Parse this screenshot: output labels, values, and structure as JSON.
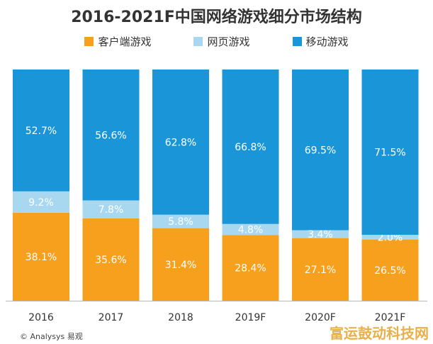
{
  "chart_data": {
    "type": "bar",
    "stacked": true,
    "normalized": true,
    "title": "2016-2021F中国网络游戏细分市场结构",
    "categories": [
      "2016",
      "2017",
      "2018",
      "2019F",
      "2020F",
      "2021F"
    ],
    "series": [
      {
        "name": "客户端游戏",
        "color": "#f7a01e",
        "values": [
          38.1,
          35.6,
          31.4,
          28.4,
          27.1,
          26.5
        ],
        "labels": [
          "38.1%",
          "35.6%",
          "31.4%",
          "28.4%",
          "27.1%",
          "26.5%"
        ]
      },
      {
        "name": "网页游戏",
        "color": "#a8d8f0",
        "values": [
          9.2,
          7.8,
          5.8,
          4.8,
          3.4,
          2.0
        ],
        "labels": [
          "9.2%",
          "7.8%",
          "5.8%",
          "4.8%",
          "3.4%",
          "2.0%"
        ]
      },
      {
        "name": "移动游戏",
        "color": "#1a96d8",
        "values": [
          52.7,
          56.6,
          62.8,
          66.8,
          69.5,
          71.5
        ],
        "labels": [
          "52.7%",
          "56.6%",
          "62.8%",
          "66.8%",
          "69.5%",
          "71.5%"
        ]
      }
    ],
    "ylim": [
      0,
      100
    ],
    "legend_position": "top",
    "xlabel": "",
    "ylabel": ""
  },
  "source": "© Analysys 易观",
  "watermark": "富运鼓动科技网"
}
